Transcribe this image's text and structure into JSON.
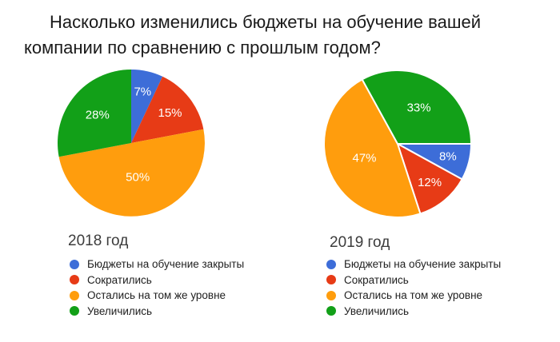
{
  "title": "Насколько изменились бюджеты на обучение вашей компании по сравнению с прошлым годом?",
  "title_lines": [
    "Насколько изменились бюджеты на обучение вашей",
    "компании по сравнению с прошлым годом?"
  ],
  "palette": {
    "blue": "#3D6DD8",
    "red": "#E73B16",
    "orange": "#FF9D0D",
    "green": "#12A018"
  },
  "chart_data": [
    {
      "type": "pie",
      "title": "2018 год",
      "labels": [
        "Бюджеты на обучение закрыты",
        "Сократились",
        "Остались на том же уровне",
        "Увеличились"
      ],
      "values": [
        7,
        15,
        50,
        28
      ],
      "value_labels": [
        "7%",
        "15%",
        "50%",
        "28%"
      ],
      "colors": [
        "#3D6DD8",
        "#E73B16",
        "#FF9D0D",
        "#12A018"
      ],
      "start_angle": 0,
      "slice_border": false,
      "legend_position": "bottom-left"
    },
    {
      "type": "pie",
      "title": "2019 год",
      "labels": [
        "Бюджеты на обучение закрыты",
        "Сократились",
        "Остались на том же уровне",
        "Увеличились"
      ],
      "values": [
        8,
        12,
        47,
        33
      ],
      "value_labels": [
        "8%",
        "12%",
        "47%",
        "33%"
      ],
      "colors": [
        "#3D6DD8",
        "#E73B16",
        "#FF9D0D",
        "#12A018"
      ],
      "start_angle": 90,
      "slice_border": true,
      "legend_position": "bottom-left"
    }
  ]
}
